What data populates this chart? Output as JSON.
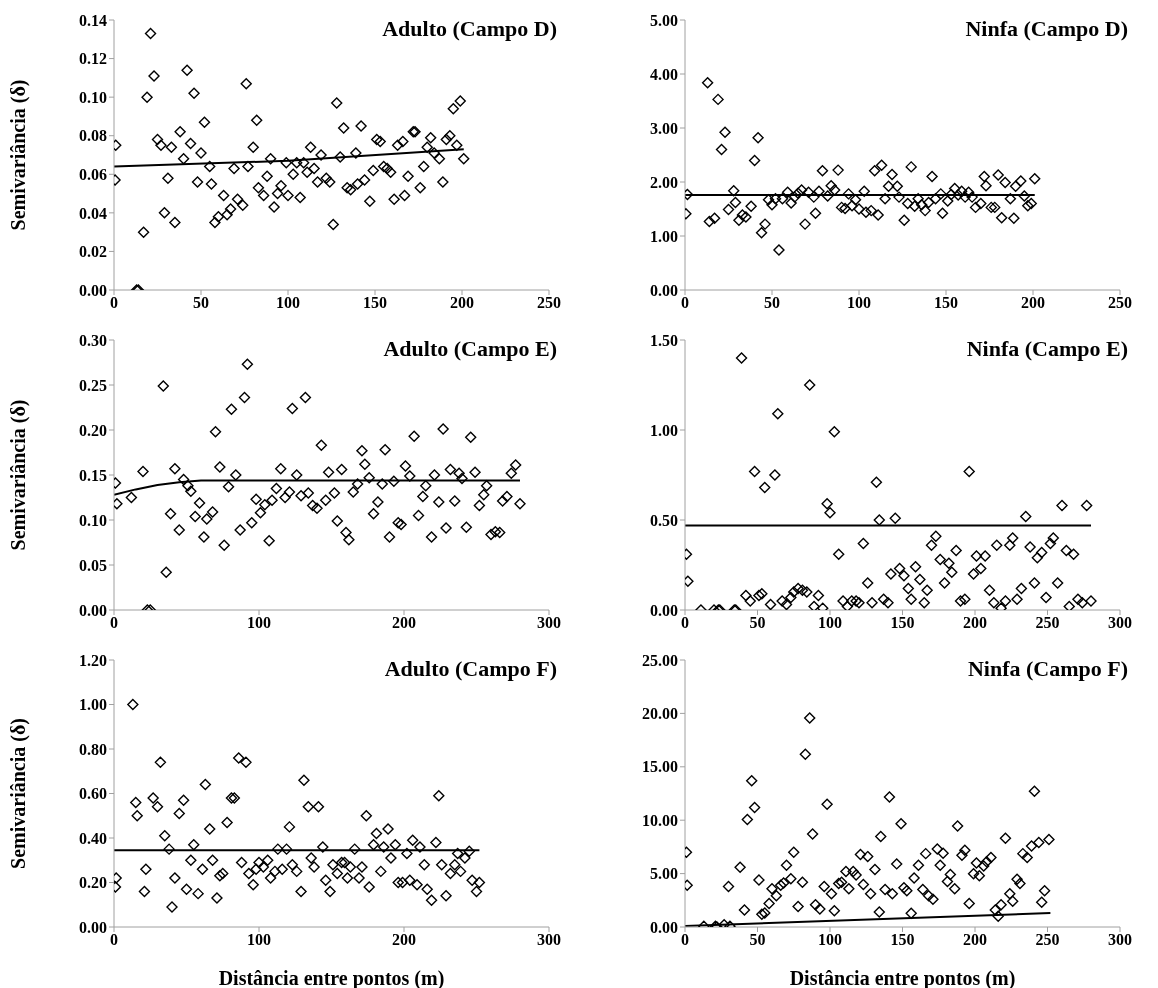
{
  "chart_data": [
    {
      "type": "scatter",
      "title": "Adulto (Campo D)",
      "ylabel": "Semivariância (δ)",
      "marker": "diamond",
      "line_style": "solid",
      "xlim": [
        0,
        250
      ],
      "xticks": [
        0,
        50,
        100,
        150,
        200,
        250
      ],
      "ylim": [
        0,
        0.14
      ],
      "yticks": [
        {
          "value": 0,
          "label": "0.00"
        },
        {
          "value": 0.02,
          "label": "0.02"
        },
        {
          "value": 0.04,
          "label": "0.04"
        },
        {
          "value": 0.06,
          "label": "0.06"
        },
        {
          "value": 0.08,
          "label": "0.08"
        },
        {
          "value": 0.1,
          "label": "0.10"
        },
        {
          "value": 0.12,
          "label": "0.12"
        },
        {
          "value": 0.14,
          "label": "0.14"
        }
      ],
      "series": [
        {
          "color": "#000000",
          "x": [
            1,
            0.6,
            13,
            14,
            17,
            19,
            21,
            23,
            25,
            27,
            29,
            31,
            33,
            35,
            38,
            40,
            42,
            44,
            46,
            48,
            50,
            52,
            55,
            56,
            58,
            60,
            63,
            65,
            67,
            69,
            71,
            74,
            76,
            77,
            80,
            82,
            83,
            86,
            88,
            90,
            92,
            94,
            96,
            99,
            100,
            103,
            105,
            107,
            109,
            111,
            113,
            115,
            117,
            119,
            122,
            124,
            126,
            128,
            130,
            132,
            134,
            136,
            139,
            140,
            142,
            144,
            147,
            149,
            151,
            153,
            155,
            157,
            159,
            161,
            163,
            166,
            167,
            169,
            172,
            173,
            176,
            178,
            180,
            182,
            184,
            187,
            189,
            191,
            193,
            195,
            197,
            199,
            201
          ],
          "values": [
            0.075,
            0.057,
            0,
            0,
            0.03,
            0.1,
            0.133,
            0.111,
            0.078,
            0.075,
            0.04,
            0.058,
            0.074,
            0.035,
            0.082,
            0.068,
            0.114,
            0.076,
            0.102,
            0.056,
            0.071,
            0.087,
            0.064,
            0.055,
            0.035,
            0.038,
            0.049,
            0.039,
            0.042,
            0.063,
            0.047,
            0.044,
            0.107,
            0.064,
            0.074,
            0.088,
            0.053,
            0.049,
            0.059,
            0.068,
            0.043,
            0.05,
            0.054,
            0.066,
            0.049,
            0.06,
            0.066,
            0.048,
            0.066,
            0.061,
            0.074,
            0.063,
            0.056,
            0.07,
            0.058,
            0.056,
            0.034,
            0.097,
            0.069,
            0.084,
            0.053,
            0.052,
            0.071,
            0.055,
            0.085,
            0.057,
            0.046,
            0.062,
            0.078,
            0.077,
            0.064,
            0.063,
            0.061,
            0.047,
            0.075,
            0.077,
            0.049,
            0.059,
            0.082,
            0.082,
            0.053,
            0.064,
            0.074,
            0.079,
            0.071,
            0.068,
            0.056,
            0.078,
            0.08,
            0.094,
            0.075,
            0.098,
            0.068
          ]
        },
        {
          "type": "line",
          "marker": "none",
          "color": "#000000",
          "x": [
            0,
            100,
            201
          ],
          "values": [
            0.064,
            0.067,
            0.073
          ]
        }
      ]
    },
    {
      "type": "scatter",
      "title": "Ninfa (Campo D)",
      "marker": "diamond",
      "line_style": "solid",
      "xlim": [
        0,
        250
      ],
      "xticks": [
        0,
        50,
        100,
        150,
        200,
        250
      ],
      "ylim": [
        0,
        5
      ],
      "yticks": [
        {
          "value": 0,
          "label": "0.00"
        },
        {
          "value": 1,
          "label": "1.00"
        },
        {
          "value": 2,
          "label": "2.00"
        },
        {
          "value": 3,
          "label": "3.00"
        },
        {
          "value": 4,
          "label": "4.00"
        },
        {
          "value": 5,
          "label": "5.00"
        }
      ],
      "series": [
        {
          "color": "#000000",
          "x": [
            0.5,
            1.4,
            13,
            14,
            17,
            19,
            21,
            23,
            25,
            28,
            29,
            31,
            33,
            35,
            38,
            40,
            42,
            44,
            46,
            48,
            50,
            52,
            54,
            56,
            59,
            61,
            63,
            65,
            67,
            69,
            71,
            74,
            75,
            77,
            79,
            82,
            84,
            86,
            88,
            90,
            92,
            94,
            96,
            98,
            100,
            103,
            104,
            107,
            109,
            111,
            113,
            115,
            117,
            119,
            122,
            123,
            126,
            128,
            130,
            132,
            134,
            136,
            138,
            140,
            142,
            144,
            147,
            148,
            151,
            153,
            155,
            157,
            159,
            161,
            163,
            165,
            167,
            170,
            172,
            173,
            176,
            178,
            180,
            182,
            184,
            187,
            189,
            190,
            193,
            195,
            197,
            199,
            201
          ],
          "values": [
            1.41,
            1.77,
            3.84,
            1.27,
            1.33,
            3.53,
            2.6,
            2.92,
            1.49,
            1.84,
            1.62,
            1.29,
            1.39,
            1.35,
            1.55,
            2.4,
            2.82,
            1.06,
            1.22,
            1.67,
            1.58,
            1.69,
            0.74,
            1.69,
            1.81,
            1.61,
            1.72,
            1.79,
            1.85,
            1.22,
            1.81,
            1.72,
            1.42,
            1.83,
            2.21,
            1.74,
            1.93,
            1.85,
            2.22,
            1.53,
            1.51,
            1.78,
            1.56,
            1.67,
            1.5,
            1.83,
            1.44,
            1.47,
            2.21,
            1.39,
            2.31,
            1.69,
            1.92,
            2.14,
            1.92,
            1.72,
            1.29,
            1.6,
            2.28,
            1.55,
            1.69,
            1.58,
            1.47,
            1.62,
            2.1,
            1.69,
            1.78,
            1.42,
            1.65,
            1.77,
            1.88,
            1.76,
            1.83,
            1.72,
            1.81,
            1.72,
            1.53,
            1.6,
            2.1,
            1.93,
            1.53,
            1.53,
            2.13,
            1.34,
            1.99,
            1.69,
            1.33,
            1.92,
            2.02,
            1.74,
            1.56,
            1.6,
            2.06
          ]
        },
        {
          "type": "line",
          "marker": "none",
          "color": "#000000",
          "x": [
            0,
            201
          ],
          "values": [
            1.76,
            1.76
          ]
        }
      ]
    },
    {
      "type": "scatter",
      "title": "Adulto (Campo E)",
      "ylabel": "Semivariância (δ)",
      "marker": "diamond",
      "line_style": "solid",
      "xlim": [
        0,
        300
      ],
      "xticks": [
        0,
        100,
        200,
        300
      ],
      "ylim": [
        0,
        0.3
      ],
      "yticks": [
        {
          "value": 0,
          "label": "0.00"
        },
        {
          "value": 0.05,
          "label": "0.05"
        },
        {
          "value": 0.1,
          "label": "0.10"
        },
        {
          "value": 0.15,
          "label": "0.15"
        },
        {
          "value": 0.2,
          "label": "0.20"
        },
        {
          "value": 0.25,
          "label": "0.25"
        },
        {
          "value": 0.3,
          "label": "0.30"
        }
      ],
      "series": [
        {
          "color": "#000000",
          "x": [
            1,
            2,
            12,
            20,
            23,
            25,
            34,
            36,
            39,
            42,
            45,
            48,
            51,
            53,
            56,
            59,
            62,
            64,
            68,
            70,
            73,
            76,
            79,
            81,
            84,
            87,
            90,
            92,
            95,
            98,
            101,
            104,
            107,
            109,
            112,
            115,
            118,
            121,
            123,
            126,
            129,
            132,
            134,
            137,
            140,
            143,
            146,
            148,
            152,
            154,
            157,
            160,
            162,
            165,
            168,
            171,
            173,
            176,
            179,
            182,
            185,
            187,
            190,
            193,
            196,
            198,
            201,
            204,
            207,
            210,
            213,
            215,
            219,
            221,
            224,
            227,
            229,
            232,
            235,
            238,
            240,
            243,
            246,
            249,
            252,
            255,
            257,
            260,
            263,
            266,
            268,
            271,
            274,
            277,
            280
          ],
          "values": [
            0.141,
            0.118,
            0.125,
            0.154,
            0,
            0,
            0.249,
            0.042,
            0.107,
            0.157,
            0.089,
            0.145,
            0.138,
            0.132,
            0.104,
            0.119,
            0.081,
            0.101,
            0.109,
            0.198,
            0.159,
            0.072,
            0.137,
            0.223,
            0.15,
            0.089,
            0.236,
            0.273,
            0.097,
            0.123,
            0.108,
            0.117,
            0.077,
            0.122,
            0.135,
            0.157,
            0.125,
            0.131,
            0.224,
            0.15,
            0.127,
            0.236,
            0.13,
            0.116,
            0.113,
            0.183,
            0.122,
            0.153,
            0.13,
            0.099,
            0.156,
            0.086,
            0.078,
            0.131,
            0.14,
            0.177,
            0.162,
            0.147,
            0.107,
            0.12,
            0.14,
            0.178,
            0.081,
            0.143,
            0.097,
            0.095,
            0.16,
            0.149,
            0.193,
            0.105,
            0.126,
            0.138,
            0.081,
            0.15,
            0.12,
            0.201,
            0.091,
            0.156,
            0.121,
            0.152,
            0.146,
            0.092,
            0.192,
            0.153,
            0.116,
            0.128,
            0.138,
            0.084,
            0.087,
            0.086,
            0.121,
            0.126,
            0.152,
            0.161,
            0.118
          ]
        },
        {
          "type": "line",
          "marker": "none",
          "color": "#000000",
          "x": [
            0,
            15,
            30,
            45,
            60,
            280
          ],
          "values": [
            0.128,
            0.134,
            0.139,
            0.142,
            0.144,
            0.144
          ]
        }
      ]
    },
    {
      "type": "scatter",
      "title": "Ninfa (Campo E)",
      "marker": "diamond",
      "line_style": "solid",
      "xlim": [
        0,
        300
      ],
      "xticks": [
        0,
        50,
        100,
        150,
        200,
        250,
        300
      ],
      "ylim": [
        0,
        1.5
      ],
      "yticks": [
        {
          "value": 0,
          "label": "0.00"
        },
        {
          "value": 0.5,
          "label": "0.50"
        },
        {
          "value": 1,
          "label": "1.00"
        },
        {
          "value": 1.5,
          "label": "1.50"
        }
      ],
      "series": [
        {
          "color": "#000000",
          "x": [
            1,
            2,
            11,
            20,
            23,
            24,
            34,
            35,
            39,
            42,
            45,
            48,
            51,
            53,
            55,
            59,
            62,
            64,
            67,
            70,
            73,
            75,
            78,
            81,
            84,
            86,
            89,
            92,
            95,
            98,
            100,
            103,
            106,
            109,
            112,
            115,
            118,
            120,
            123,
            126,
            129,
            132,
            134,
            137,
            140,
            142,
            145,
            148,
            151,
            154,
            156,
            159,
            162,
            165,
            167,
            170,
            173,
            176,
            179,
            182,
            184,
            187,
            190,
            193,
            196,
            199,
            201,
            204,
            207,
            210,
            213,
            215,
            218,
            221,
            224,
            226,
            229,
            232,
            235,
            238,
            241,
            243,
            246,
            249,
            252,
            254,
            257,
            260,
            263,
            265,
            268,
            271,
            274,
            277,
            280
          ],
          "values": [
            0.31,
            0.16,
            0,
            0,
            0,
            0,
            0,
            0,
            1.4,
            0.08,
            0.05,
            0.77,
            0.08,
            0.09,
            0.68,
            0.03,
            0.75,
            1.09,
            0.05,
            0.03,
            0.07,
            0.1,
            0.12,
            0.11,
            0.1,
            1.25,
            0.02,
            0.08,
            0.01,
            0.59,
            0.54,
            0.99,
            0.31,
            0.05,
            0.02,
            0.05,
            0.05,
            0.04,
            0.37,
            0.15,
            0.04,
            0.71,
            0.5,
            0.06,
            0.04,
            0.2,
            0.51,
            0.23,
            0.19,
            0.12,
            0.06,
            0.24,
            0.17,
            0.04,
            0.11,
            0.36,
            0.41,
            0.28,
            0.15,
            0.26,
            0.21,
            0.33,
            0.05,
            0.06,
            0.77,
            0.2,
            0.3,
            0.23,
            0.3,
            0.11,
            0.04,
            0.36,
            0.01,
            0.05,
            0.36,
            0.4,
            0.06,
            0.12,
            0.52,
            0.35,
            0.15,
            0.29,
            0.32,
            0.07,
            0.37,
            0.4,
            0.15,
            0.58,
            0.33,
            0.02,
            0.31,
            0.06,
            0.04,
            0.58,
            0.05
          ]
        },
        {
          "type": "line",
          "marker": "none",
          "color": "#000000",
          "x": [
            0,
            280
          ],
          "values": [
            0.47,
            0.47
          ]
        }
      ]
    },
    {
      "type": "scatter",
      "title": "Adulto (Campo F)",
      "xlabel": "Distância entre pontos (m)",
      "ylabel": "Semivariância (δ)",
      "marker": "diamond",
      "line_style": "solid",
      "xlim": [
        0,
        300
      ],
      "xticks": [
        0,
        100,
        200,
        300
      ],
      "ylim": [
        0,
        1.2
      ],
      "yticks": [
        {
          "value": 0,
          "label": "0.00"
        },
        {
          "value": 0.2,
          "label": "0.20"
        },
        {
          "value": 0.4,
          "label": "0.40"
        },
        {
          "value": 0.6,
          "label": "0.60"
        },
        {
          "value": 0.8,
          "label": "0.80"
        },
        {
          "value": 1,
          "label": "1.00"
        },
        {
          "value": 1.2,
          "label": "1.20"
        }
      ],
      "series": [
        {
          "color": "#000000",
          "x": [
            1,
            1.5,
            13,
            15,
            16,
            21,
            22,
            27,
            30,
            32,
            35,
            38,
            40,
            42,
            45,
            48,
            50,
            53,
            55,
            58,
            61,
            63,
            66,
            68,
            71,
            73,
            75,
            78,
            81,
            83,
            86,
            88,
            91,
            93,
            96,
            98,
            100,
            103,
            106,
            108,
            111,
            113,
            116,
            119,
            121,
            123,
            126,
            129,
            131,
            134,
            136,
            138,
            141,
            144,
            146,
            149,
            151,
            154,
            157,
            159,
            161,
            163,
            166,
            169,
            171,
            174,
            176,
            179,
            181,
            184,
            186,
            189,
            191,
            194,
            196,
            199,
            202,
            204,
            206,
            209,
            211,
            214,
            216,
            219,
            222,
            224,
            226,
            229,
            232,
            235,
            237,
            239,
            242,
            245,
            247,
            250,
            252
          ],
          "values": [
            0.18,
            0.22,
            1,
            0.56,
            0.5,
            0.16,
            0.26,
            0.58,
            0.54,
            0.74,
            0.41,
            0.35,
            0.09,
            0.22,
            0.51,
            0.57,
            0.17,
            0.3,
            0.37,
            0.15,
            0.26,
            0.64,
            0.44,
            0.3,
            0.13,
            0.23,
            0.24,
            0.47,
            0.58,
            0.58,
            0.76,
            0.29,
            0.74,
            0.24,
            0.19,
            0.26,
            0.29,
            0.27,
            0.3,
            0.22,
            0.25,
            0.35,
            0.26,
            0.35,
            0.45,
            0.28,
            0.25,
            0.16,
            0.66,
            0.54,
            0.31,
            0.27,
            0.54,
            0.36,
            0.21,
            0.16,
            0.28,
            0.24,
            0.29,
            0.29,
            0.22,
            0.27,
            0.35,
            0.22,
            0.27,
            0.5,
            0.18,
            0.37,
            0.42,
            0.25,
            0.36,
            0.44,
            0.31,
            0.37,
            0.2,
            0.2,
            0.33,
            0.21,
            0.39,
            0.19,
            0.36,
            0.28,
            0.17,
            0.12,
            0.38,
            0.59,
            0.28,
            0.14,
            0.24,
            0.28,
            0.33,
            0.25,
            0.31,
            0.34,
            0.21,
            0.16,
            0.2
          ]
        },
        {
          "type": "line",
          "marker": "none",
          "color": "#000000",
          "x": [
            0,
            252
          ],
          "values": [
            0.345,
            0.345
          ]
        }
      ]
    },
    {
      "type": "scatter",
      "title": "Ninfa (Campo F)",
      "xlabel": "Distância entre pontos (m)",
      "marker": "diamond",
      "line_style": "solid",
      "xlim": [
        0,
        300
      ],
      "xticks": [
        0,
        50,
        100,
        150,
        200,
        250,
        300
      ],
      "ylim": [
        0,
        25
      ],
      "yticks": [
        {
          "value": 0,
          "label": "0.00"
        },
        {
          "value": 5,
          "label": "5.00"
        },
        {
          "value": 10,
          "label": "10.00"
        },
        {
          "value": 15,
          "label": "15.00"
        },
        {
          "value": 20,
          "label": "20.00"
        },
        {
          "value": 25,
          "label": "25.00"
        }
      ],
      "series": [
        {
          "color": "#000000",
          "x": [
            1,
            1.5,
            13,
            21,
            22,
            27,
            31,
            30,
            38,
            41,
            43,
            46,
            48,
            51,
            53,
            55,
            58,
            60,
            63,
            66,
            68,
            70,
            73,
            75,
            78,
            81,
            83,
            86,
            88,
            90,
            93,
            96,
            98,
            101,
            103,
            106,
            108,
            111,
            113,
            116,
            118,
            121,
            123,
            126,
            128,
            131,
            134,
            135,
            138,
            141,
            143,
            146,
            149,
            151,
            153,
            156,
            158,
            161,
            164,
            166,
            168,
            171,
            174,
            176,
            178,
            181,
            183,
            186,
            188,
            191,
            193,
            196,
            199,
            201,
            203,
            206,
            208,
            211,
            214,
            216,
            218,
            221,
            224,
            226,
            229,
            231,
            233,
            236,
            239,
            241,
            244,
            246,
            248,
            251
          ],
          "values": [
            6.99,
            3.91,
            0.08,
            0.08,
            0,
            0.2,
            0.08,
            3.79,
            5.59,
            1.6,
            10.06,
            13.7,
            11.18,
            4.39,
            1.2,
            1.32,
            2.2,
            3.59,
            2.92,
            3.91,
            4.11,
            5.79,
            4.51,
            6.99,
            1.92,
            4.19,
            16.17,
            19.57,
            8.71,
            2.08,
            1.68,
            3.79,
            11.5,
            3.12,
            1.52,
            4.07,
            4.19,
            5.19,
            3.59,
            5.19,
            4.87,
            6.79,
            3.99,
            6.59,
            3.12,
            5.39,
            1.4,
            8.47,
            3.51,
            12.18,
            3.12,
            5.91,
            9.66,
            3.67,
            3.39,
            1.28,
            4.59,
            5.79,
            3.51,
            6.87,
            2.92,
            2.6,
            7.31,
            5.79,
            6.91,
            4.27,
            4.91,
            3.59,
            9.46,
            6.71,
            7.19,
            2.2,
            4.99,
            5.99,
            4.79,
            5.71,
            6.11,
            6.51,
            1.6,
            1,
            2.08,
            8.31,
            3.12,
            2.4,
            4.47,
            4.07,
            6.87,
            6.51,
            7.59,
            12.7,
            7.91,
            2.32,
            3.39,
            8.19
          ]
        },
        {
          "type": "line",
          "marker": "none",
          "color": "#000000",
          "x": [
            0,
            252
          ],
          "values": [
            0.1,
            1.3
          ]
        }
      ]
    }
  ]
}
